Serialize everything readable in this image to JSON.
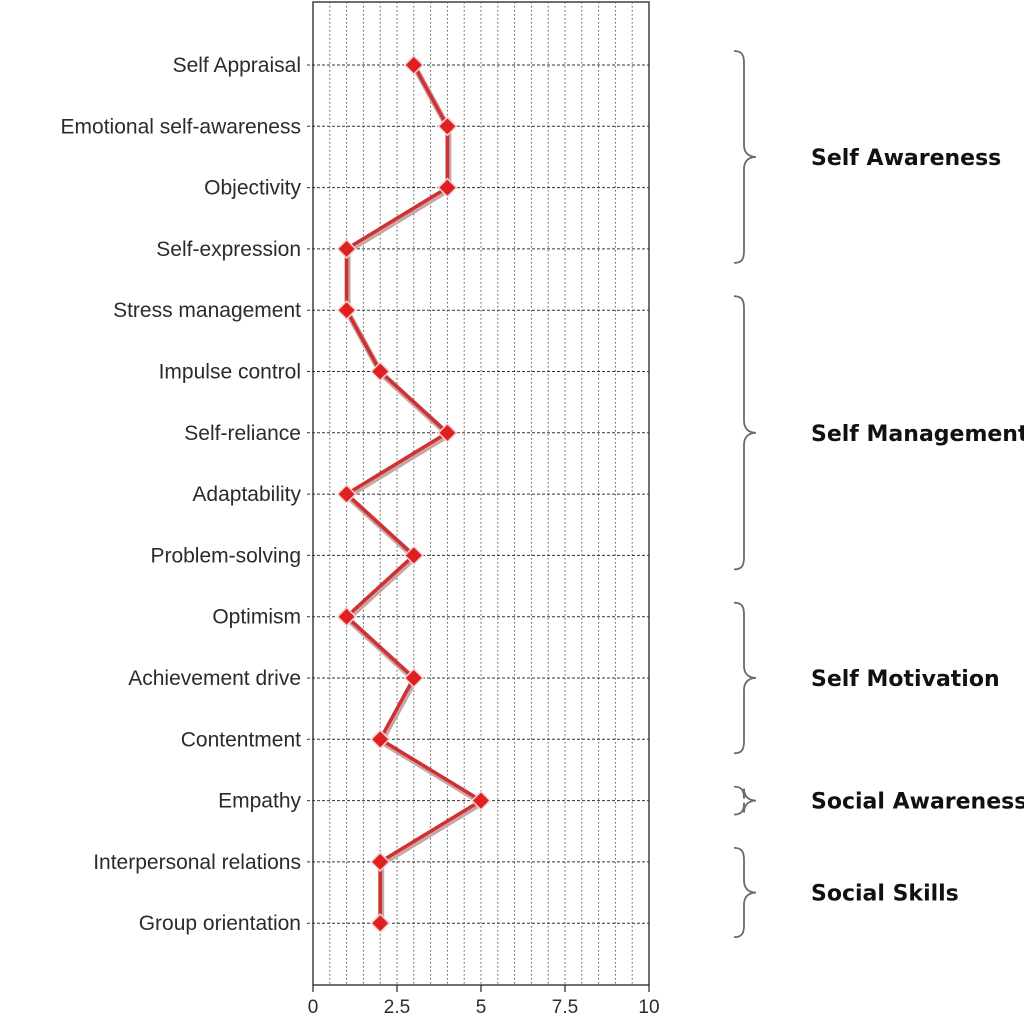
{
  "chart_data": {
    "type": "line",
    "orientation": "horizontal",
    "categories": [
      "Self Appraisal",
      "Emotional self-awareness",
      "Objectivity",
      "Self-expression",
      "Stress management",
      "Impulse control",
      "Self-reliance",
      "Adaptability",
      "Problem-solving",
      "Optimism",
      "Achievement drive",
      "Contentment",
      "Empathy",
      "Interpersonal relations",
      "Group orientation"
    ],
    "values": [
      3,
      4,
      4,
      1,
      1,
      2,
      4,
      1,
      3,
      1,
      3,
      2,
      5,
      2,
      2
    ],
    "xlim": [
      0,
      10
    ],
    "x_ticks": [
      0,
      2.5,
      5,
      7.5,
      10
    ],
    "x_tick_labels": [
      "0",
      "2.5",
      "5",
      "7.5",
      "10"
    ],
    "grid": true,
    "grid_style": "dotted",
    "series_color": "#e02020",
    "line_color": "#d03030",
    "marker": "diamond",
    "groups": [
      {
        "label": "Self Awareness",
        "first": 0,
        "last": 3
      },
      {
        "label": "Self Management",
        "first": 4,
        "last": 8
      },
      {
        "label": "Self Motivation",
        "first": 9,
        "last": 11
      },
      {
        "label": "Social Awareness",
        "first": 12,
        "last": 12
      },
      {
        "label": "Social Skills",
        "first": 13,
        "last": 14
      }
    ]
  }
}
